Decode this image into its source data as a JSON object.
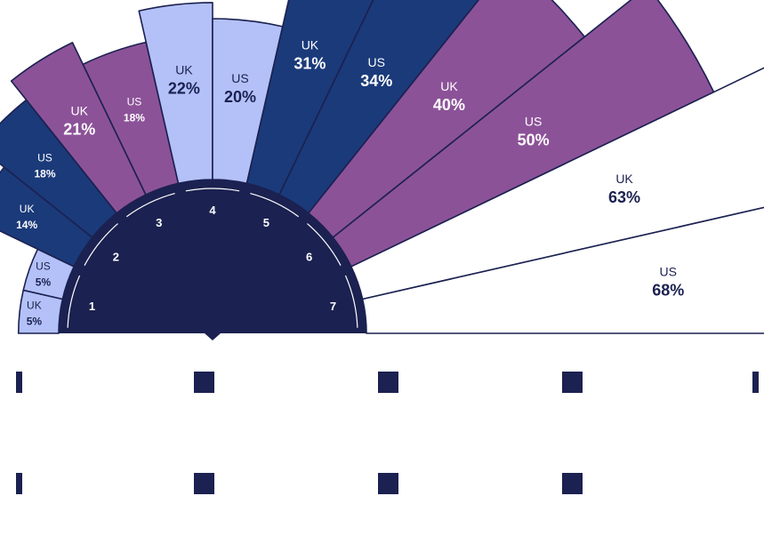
{
  "chart_data": {
    "type": "polar-bar",
    "title": "",
    "categories": [
      "1",
      "2",
      "3",
      "4",
      "5",
      "6",
      "7"
    ],
    "series": [
      {
        "name": "UK",
        "values": [
          5,
          14,
          21,
          22,
          31,
          40,
          63
        ]
      },
      {
        "name": "US",
        "values": [
          5,
          18,
          18,
          20,
          34,
          50,
          68
        ]
      }
    ],
    "value_unit": "%",
    "bars": [
      {
        "category": "1",
        "country": "UK",
        "value": 5,
        "label": "5%",
        "color": "#b3c1f8"
      },
      {
        "category": "1",
        "country": "US",
        "value": 5,
        "label": "5%",
        "color": "#b3c1f8"
      },
      {
        "category": "2",
        "country": "UK",
        "value": 14,
        "label": "14%",
        "color": "#1b3a7a"
      },
      {
        "category": "2",
        "country": "US",
        "value": 18,
        "label": "18%",
        "color": "#1b3a7a"
      },
      {
        "category": "3",
        "country": "UK",
        "value": 21,
        "label": "21%",
        "color": "#8c5298"
      },
      {
        "category": "3",
        "country": "US",
        "value": 18,
        "label": "18%",
        "color": "#8c5298"
      },
      {
        "category": "4",
        "country": "UK",
        "value": 22,
        "label": "22%",
        "color": "#b3c1f8"
      },
      {
        "category": "4",
        "country": "US",
        "value": 20,
        "label": "20%",
        "color": "#b3c1f8"
      },
      {
        "category": "5",
        "country": "UK",
        "value": 31,
        "label": "31%",
        "color": "#1b3a7a"
      },
      {
        "category": "5",
        "country": "US",
        "value": 34,
        "label": "34%",
        "color": "#1b3a7a"
      },
      {
        "category": "6",
        "country": "UK",
        "value": 40,
        "label": "40%",
        "color": "#8c5298"
      },
      {
        "category": "6",
        "country": "US",
        "value": 50,
        "label": "50%",
        "color": "#8c5298"
      },
      {
        "category": "7",
        "country": "UK",
        "value": 63,
        "label": "63%",
        "color": "#ffffff"
      },
      {
        "category": "7",
        "country": "US",
        "value": 68,
        "label": "68%",
        "color": "#ffffff"
      }
    ],
    "colors": {
      "hub": "#1b2150",
      "outline": "#1b2150",
      "light_text": "#ffffff",
      "dark_text": "#1b2150"
    },
    "legend": {
      "placement": "bottom",
      "row_count": 2,
      "markers_per_row": [
        5,
        4
      ]
    }
  }
}
